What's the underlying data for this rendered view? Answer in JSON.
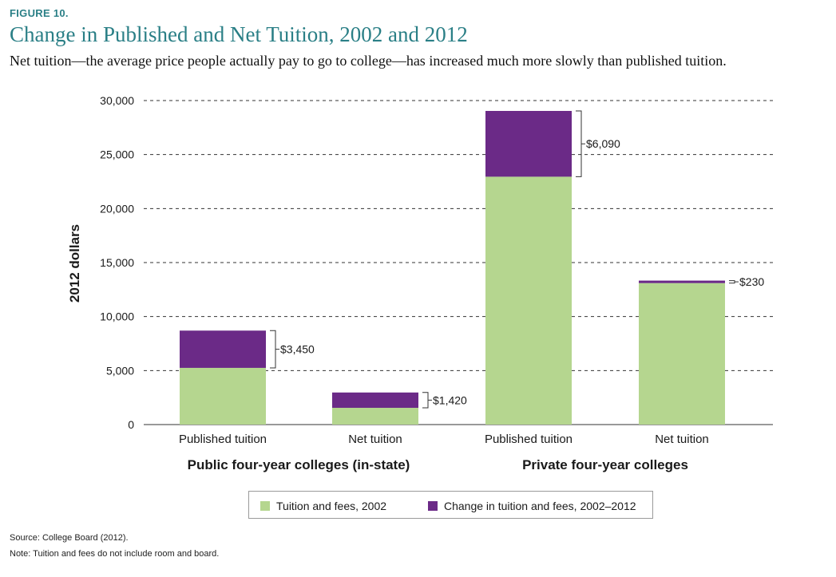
{
  "figure_label": "FIGURE 10.",
  "title": "Change in Published and Net Tuition, 2002 and 2012",
  "subtitle": "Net tuition—the average price people actually pay to go to college—has increased much more slowly than published tuition.",
  "source": "Source: College Board (2012).",
  "note": "Note: Tuition and fees do not include room and board.",
  "colors": {
    "base": "#b5d68f",
    "change": "#6b2a87"
  },
  "chart_data": {
    "type": "bar",
    "stacked": true,
    "ylabel": "2012 dollars",
    "ylim": [
      0,
      30000
    ],
    "yticks": [
      0,
      5000,
      10000,
      15000,
      20000,
      25000,
      30000
    ],
    "ytick_labels": [
      "0",
      "5,000",
      "10,000",
      "15,000",
      "20,000",
      "25,000",
      "30,000"
    ],
    "grid": "horizontal dashed",
    "categories": [
      "Published tuition",
      "Net tuition",
      "Published tuition",
      "Net tuition"
    ],
    "groups": [
      {
        "label": "Public four-year colleges (in-state)"
      },
      {
        "label": "Private four-year colleges"
      }
    ],
    "series": [
      {
        "name": "Tuition and fees, 2002",
        "values": [
          5250,
          1550,
          22950,
          13100
        ]
      },
      {
        "name": "Change in tuition and fees, 2002–2012",
        "values": [
          3450,
          1420,
          6090,
          230
        ]
      }
    ],
    "annotations": [
      "$3,450",
      "$1,420",
      "$6,090",
      "$230"
    ],
    "legend_position": "bottom"
  }
}
